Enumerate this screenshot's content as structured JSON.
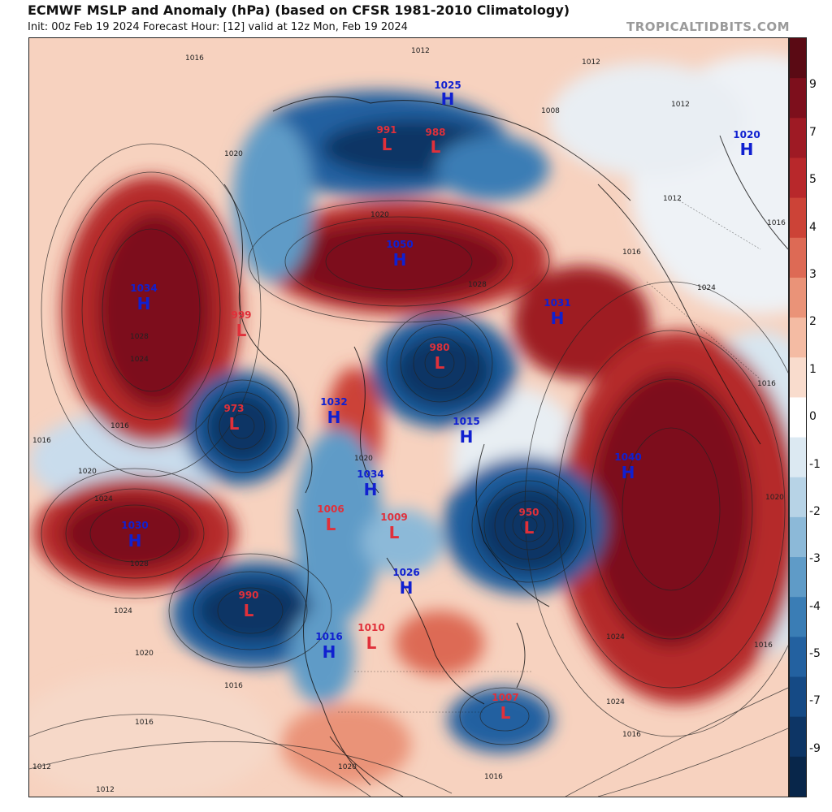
{
  "header": {
    "title": "ECMWF MSLP and Anomaly (hPa) (based on CFSR 1981-2010 Climatology)",
    "subtitle": "Init: 00z Feb 19 2024   Forecast Hour: [12]   valid at 12z Mon, Feb 19 2024",
    "credit": "TROPICALTIDBITS.COM"
  },
  "colorbar": {
    "ticks": [
      "9",
      "7",
      "5",
      "4",
      "3",
      "2",
      "1",
      "0",
      "-1",
      "-2",
      "-3",
      "-4",
      "-5",
      "-7",
      "-9"
    ],
    "colors": [
      "#5a0a14",
      "#7d0f1c",
      "#9e1a24",
      "#b8282b",
      "#cc4337",
      "#dd6a55",
      "#ea9378",
      "#f4bba3",
      "#f9dccd",
      "#ffffff",
      "#dce9f2",
      "#b7d3e6",
      "#8cb9d8",
      "#5f9bc7",
      "#3a7db5",
      "#2361a0",
      "#154a85",
      "#0d3565",
      "#08264a"
    ],
    "positive_color": "#b52a2c",
    "negative_color": "#1d5d9d"
  },
  "pressure_centers": [
    {
      "type": "H",
      "value": "1025",
      "color": "#1020d0"
    },
    {
      "type": "L",
      "value": "991",
      "color": "#e0303a"
    },
    {
      "type": "L",
      "value": "988",
      "color": "#e0303a"
    },
    {
      "type": "H",
      "value": "1020",
      "color": "#1020d0"
    },
    {
      "type": "H",
      "value": "1050",
      "color": "#1020d0"
    },
    {
      "type": "H",
      "value": "1034",
      "color": "#1020d0"
    },
    {
      "type": "L",
      "value": "999",
      "color": "#e0303a"
    },
    {
      "type": "H",
      "value": "1031",
      "color": "#1020d0"
    },
    {
      "type": "L",
      "value": "980",
      "color": "#e0303a"
    },
    {
      "type": "L",
      "value": "973",
      "color": "#e0303a"
    },
    {
      "type": "H",
      "value": "1032",
      "color": "#1020d0"
    },
    {
      "type": "H",
      "value": "1015",
      "color": "#1020d0"
    },
    {
      "type": "H",
      "value": "1040",
      "color": "#1020d0"
    },
    {
      "type": "H",
      "value": "1034",
      "color": "#1020d0"
    },
    {
      "type": "L",
      "value": "1006",
      "color": "#e0303a"
    },
    {
      "type": "L",
      "value": "1009",
      "color": "#e0303a"
    },
    {
      "type": "L",
      "value": "950",
      "color": "#e0303a"
    },
    {
      "type": "H",
      "value": "1030",
      "color": "#1020d0"
    },
    {
      "type": "H",
      "value": "1026",
      "color": "#1020d0"
    },
    {
      "type": "L",
      "value": "990",
      "color": "#e0303a"
    },
    {
      "type": "L",
      "value": "1010",
      "color": "#e0303a"
    },
    {
      "type": "H",
      "value": "1016",
      "color": "#1020d0"
    },
    {
      "type": "L",
      "value": "1007",
      "color": "#e0303a"
    }
  ],
  "isobar_labels": [
    "1012",
    "1016",
    "1020",
    "1024",
    "1028",
    "1016",
    "1024",
    "1012",
    "1008",
    "1016",
    "1016",
    "1012",
    "1020",
    "1012",
    "1016",
    "1024",
    "1016",
    "1020",
    "1012",
    "1028",
    "1024",
    "1016",
    "1020",
    "1016",
    "1024",
    "1016",
    "1024",
    "1016",
    "1020",
    "1016",
    "1020",
    "1028",
    "1020",
    "1012"
  ]
}
